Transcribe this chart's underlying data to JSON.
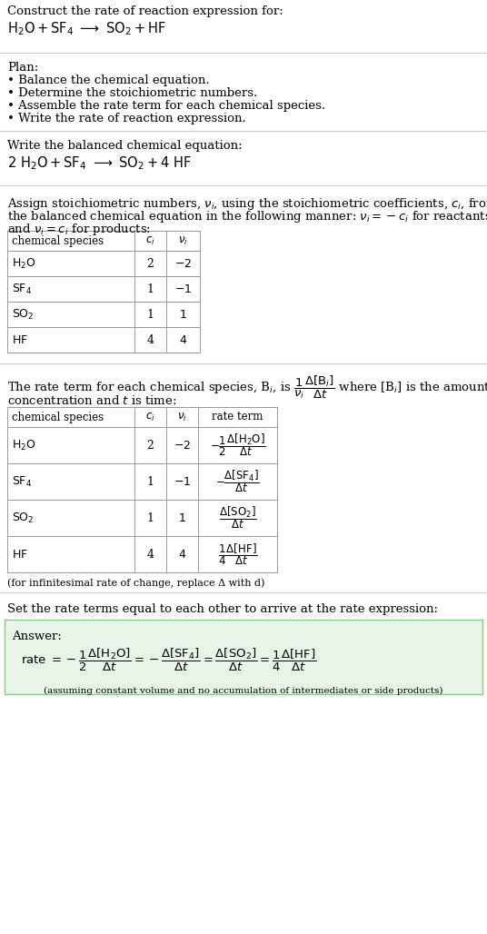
{
  "bg_color": "#ffffff",
  "text_color": "#000000",
  "font_family": "DejaVu Serif",
  "title_line1": "Construct the rate of reaction expression for:",
  "plan_header": "Plan:",
  "plan_items": [
    "• Balance the chemical equation.",
    "• Determine the stoichiometric numbers.",
    "• Assemble the rate term for each chemical species.",
    "• Write the rate of reaction expression."
  ],
  "balanced_header": "Write the balanced chemical equation:",
  "set_equal_text": "Set the rate terms equal to each other to arrive at the rate expression:",
  "infinitesimal_note": "(for infinitesimal rate of change, replace Δ with d)",
  "answer_label": "Answer:",
  "answer_box_color": "#e8f4e8",
  "answer_box_border": "#88cc88",
  "answer_note": "(assuming constant volume and no accumulation of intermediates or side products)",
  "table1_species": [
    "H_2O",
    "SF_4",
    "SO_2",
    "HF"
  ],
  "table1_ci": [
    "2",
    "1",
    "1",
    "4"
  ],
  "table1_ni": [
    "-2",
    "-1",
    "1",
    "4"
  ],
  "table2_species": [
    "H_2O",
    "SF_4",
    "SO_2",
    "HF"
  ],
  "table2_ci": [
    "2",
    "1",
    "1",
    "4"
  ],
  "table2_ni": [
    "-2",
    "-1",
    "1",
    "4"
  ],
  "separator_color": "#cccccc",
  "table_border_color": "#999999"
}
